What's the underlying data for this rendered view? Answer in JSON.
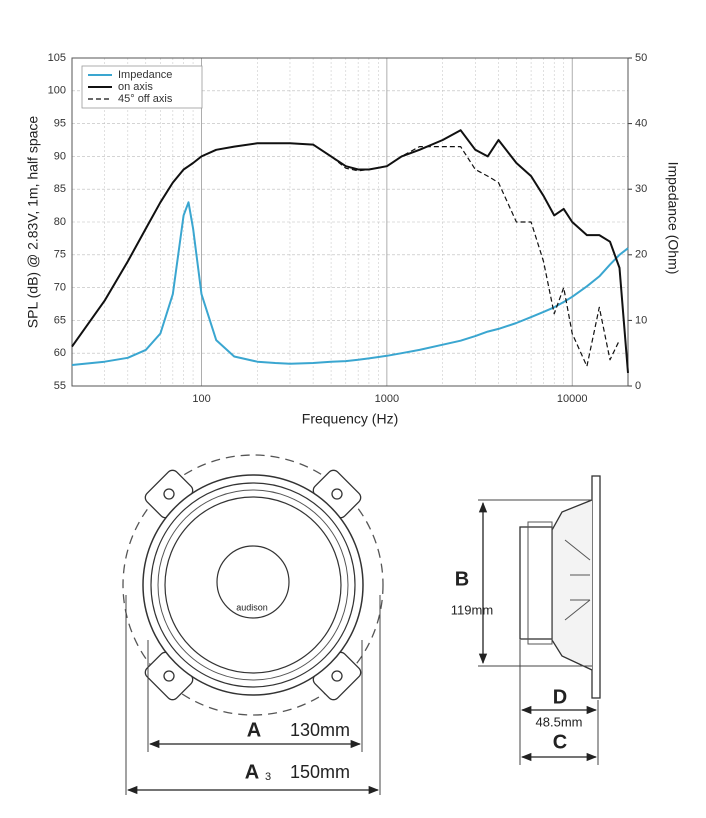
{
  "chart_data": {
    "type": "line",
    "x_label": "Frequency (Hz)",
    "y_label": "SPL (dB) @ 2.83V, 1m, half space",
    "y2_label": "Impedance (Ohm)",
    "x_log_scale": true,
    "xlim": [
      20,
      20000
    ],
    "xticks": [
      100,
      1000,
      10000
    ],
    "ylim": [
      55,
      105
    ],
    "yticks": [
      55,
      60,
      65,
      70,
      75,
      80,
      85,
      90,
      95,
      100,
      105
    ],
    "y2lim": [
      0,
      50
    ],
    "y2ticks": [
      0,
      10,
      20,
      30,
      40,
      50
    ],
    "grid": true,
    "legend": "upper left",
    "x": [
      20,
      30,
      40,
      50,
      60,
      70,
      80,
      85,
      90,
      100,
      120,
      150,
      200,
      250,
      300,
      400,
      500,
      600,
      700,
      800,
      1000,
      1200,
      1500,
      2000,
      2500,
      3000,
      3500,
      4000,
      5000,
      6000,
      7000,
      8000,
      9000,
      10000,
      12000,
      14000,
      16000,
      18000,
      20000
    ],
    "series": [
      {
        "name": "Impedance",
        "color": "#3aa6d0",
        "linestyle": "solid",
        "axis": "y2",
        "values": [
          3.2,
          3.7,
          4.3,
          5.5,
          8,
          14,
          26,
          28,
          24,
          14,
          7,
          4.5,
          3.7,
          3.5,
          3.4,
          3.5,
          3.7,
          3.8,
          4,
          4.2,
          4.6,
          5,
          5.5,
          6.3,
          6.9,
          7.6,
          8.3,
          8.7,
          9.6,
          10.5,
          11.3,
          12,
          12.8,
          13.6,
          15.2,
          16.7,
          18.5,
          20,
          21
        ]
      },
      {
        "name": "on axis",
        "color": "#111111",
        "linestyle": "solid",
        "values": [
          61,
          68,
          74,
          79,
          83,
          86,
          88,
          88.5,
          89,
          90,
          91,
          91.5,
          92,
          92,
          92,
          91.8,
          90,
          88.5,
          88,
          88,
          88.5,
          90,
          91,
          92.5,
          94,
          91,
          90,
          92.5,
          89,
          87,
          84,
          81,
          82,
          80,
          78,
          78,
          77,
          73,
          57
        ]
      },
      {
        "name": "45° off axis",
        "color": "#111111",
        "linestyle": "dashed",
        "values": [
          61,
          68,
          74,
          79,
          83,
          86,
          88,
          88.5,
          89,
          90,
          91,
          91.5,
          92,
          92,
          92,
          91.8,
          90,
          88.2,
          87.8,
          88,
          88.5,
          90,
          91.5,
          91.5,
          91.5,
          88,
          87,
          86,
          80,
          80,
          74,
          66,
          70,
          63,
          58,
          67,
          59,
          62,
          null
        ]
      }
    ]
  },
  "drawing": {
    "brand": "audison",
    "dim_a": {
      "letter": "A",
      "value": "130mm"
    },
    "dim_a3": {
      "letter": "A",
      "subscript": "3",
      "value": "150mm"
    },
    "dim_b": {
      "letter": "B",
      "value": "119mm"
    },
    "dim_d": {
      "letter": "D",
      "value": "48.5mm"
    },
    "dim_c": {
      "letter": "C"
    }
  }
}
